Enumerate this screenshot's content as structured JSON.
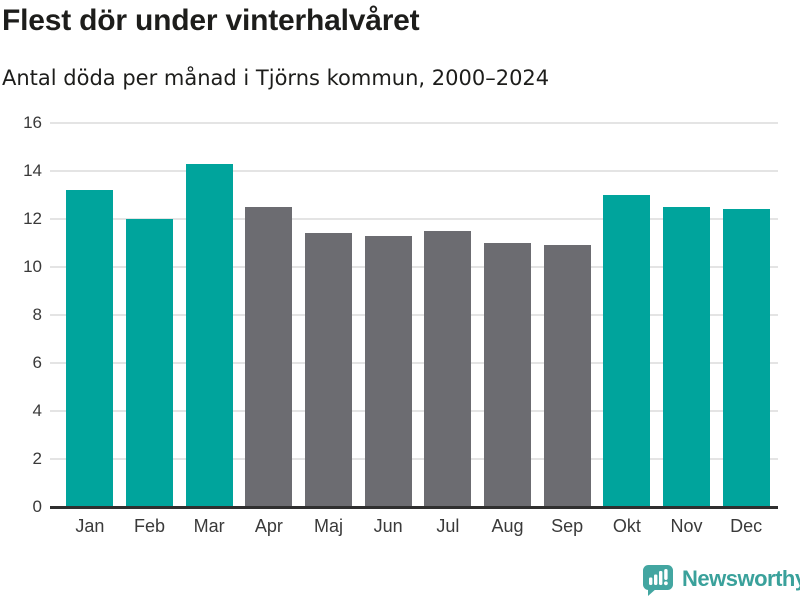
{
  "chart_data": {
    "type": "bar",
    "title": "Flest dör under vinterhalvåret",
    "subtitle": "Antal döda per månad i Tjörns kommun, 2000–2024",
    "categories": [
      "Jan",
      "Feb",
      "Mar",
      "Apr",
      "Maj",
      "Jun",
      "Jul",
      "Aug",
      "Sep",
      "Okt",
      "Nov",
      "Dec"
    ],
    "values": [
      13.2,
      12.0,
      14.3,
      12.5,
      11.4,
      11.3,
      11.5,
      11.0,
      10.9,
      13.0,
      12.5,
      12.4
    ],
    "bar_colors": [
      "#00a49c",
      "#00a49c",
      "#00a49c",
      "#6c6c71",
      "#6c6c71",
      "#6c6c71",
      "#6c6c71",
      "#6c6c71",
      "#6c6c71",
      "#00a49c",
      "#00a49c",
      "#00a49c"
    ],
    "highlight_color": "#00a49c",
    "base_color": "#6c6c71",
    "xlabel": "",
    "ylabel": "",
    "ylim": [
      0,
      16
    ],
    "yticks": [
      0,
      2,
      4,
      6,
      8,
      10,
      12,
      14,
      16
    ],
    "grid": "horizontal",
    "legend": "none"
  },
  "branding": {
    "name": "Newsworthy",
    "icon_color": "#43a6a1",
    "text_color": "#3aa19b"
  }
}
